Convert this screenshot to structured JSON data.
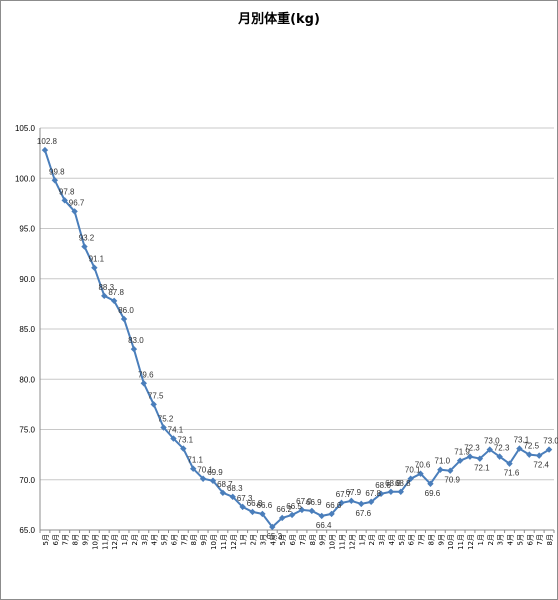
{
  "chart_data": {
    "type": "line",
    "title": "月別体重(kg)",
    "xlabel": "",
    "ylabel": "",
    "ylim": [
      65.0,
      105.0
    ],
    "yticks": [
      "65.0",
      "70.0",
      "75.0",
      "80.0",
      "85.0",
      "90.0",
      "95.0",
      "100.0",
      "105.0"
    ],
    "grid": true,
    "legend": "none",
    "line_color": "#4a7ebb",
    "categories": [
      "5月",
      "6月",
      "7月",
      "8月",
      "9月",
      "10月",
      "11月",
      "12月",
      "1月",
      "2月",
      "3月",
      "4月",
      "5月",
      "6月",
      "7月",
      "8月",
      "9月",
      "10月",
      "11月",
      "12月",
      "1月",
      "2月",
      "3月",
      "4月",
      "5月",
      "6月",
      "7月",
      "8月",
      "9月",
      "10月",
      "11月",
      "12月",
      "1月",
      "2月",
      "3月",
      "4月",
      "5月",
      "6月",
      "7月",
      "8月",
      "9月",
      "10月",
      "11月",
      "12月",
      "1月",
      "2月",
      "3月",
      "4月",
      "5月",
      "6月",
      "7月",
      "8月"
    ],
    "values": [
      102.8,
      99.8,
      97.8,
      96.7,
      93.2,
      91.1,
      88.3,
      87.8,
      86.0,
      83.0,
      79.6,
      77.5,
      75.2,
      74.1,
      73.1,
      71.1,
      70.1,
      69.9,
      68.7,
      68.3,
      67.3,
      66.8,
      66.6,
      65.3,
      66.2,
      66.5,
      67.0,
      66.9,
      66.4,
      66.6,
      67.7,
      67.9,
      67.6,
      67.8,
      68.6,
      68.8,
      68.8,
      70.1,
      70.6,
      69.6,
      71.0,
      70.9,
      71.9,
      72.3,
      72.1,
      73.0,
      72.3,
      71.6,
      73.1,
      72.5,
      72.4,
      73.0
    ]
  }
}
